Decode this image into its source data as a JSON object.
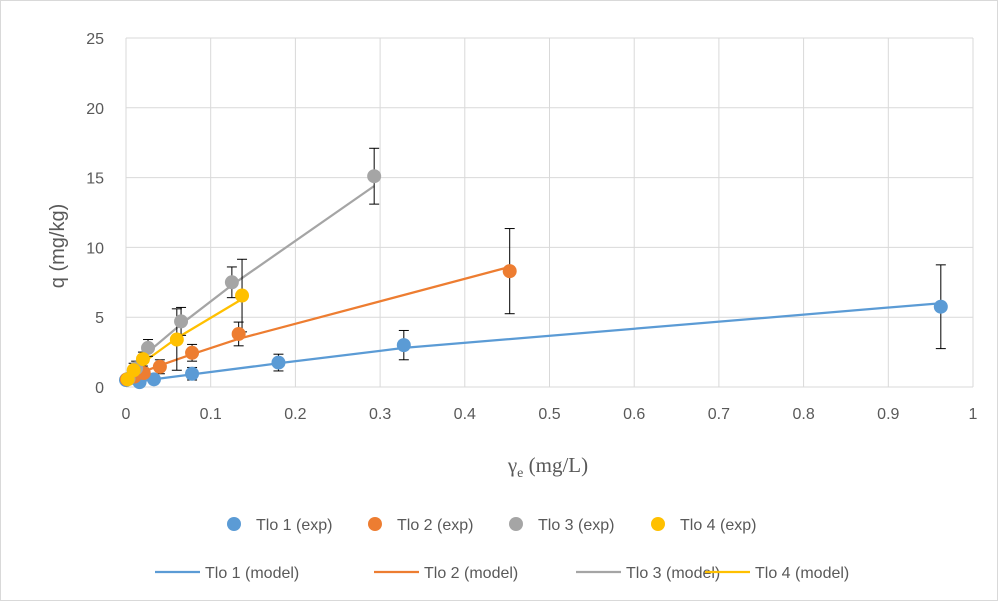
{
  "chart_data": {
    "type": "scatter",
    "title": "",
    "xlabel": {
      "main": "γ",
      "sub": "e",
      "unit": " (mg/L)"
    },
    "ylabel": "q (mg/kg)",
    "xlim": [
      0,
      1
    ],
    "ylim": [
      0,
      25
    ],
    "x_ticks": [
      "0",
      "0.1",
      "0.2",
      "0.3",
      "0.4",
      "0.5",
      "0.6",
      "0.7",
      "0.8",
      "0.9",
      "1"
    ],
    "y_ticks": [
      "0",
      "5",
      "10",
      "15",
      "20",
      "25"
    ],
    "grid": "vertical and horizontal major gridlines",
    "legend_position": "bottom",
    "series": [
      {
        "name": "Tlo 1 (exp)",
        "kind": "points",
        "color": "#5b9bd5",
        "x": [
          0.0,
          0.016,
          0.033,
          0.078,
          0.18,
          0.328,
          0.962
        ],
        "y": [
          0.5,
          0.35,
          0.55,
          0.95,
          1.75,
          3.0,
          5.75
        ],
        "error": [
          0.2,
          0.3,
          0.3,
          0.45,
          0.6,
          1.05,
          3.0
        ]
      },
      {
        "name": "Tlo 2 (exp)",
        "kind": "points",
        "color": "#ed7d31",
        "x": [
          0.001,
          0.01,
          0.021,
          0.04,
          0.078,
          0.133,
          0.453
        ],
        "y": [
          0.55,
          0.75,
          1.0,
          1.45,
          2.45,
          3.8,
          8.3
        ],
        "error": [
          0.15,
          0.3,
          0.35,
          0.5,
          0.6,
          0.85,
          3.05
        ]
      },
      {
        "name": "Tlo 3 (exp)",
        "kind": "points",
        "color": "#a5a5a5",
        "x": [
          0.003,
          0.012,
          0.026,
          0.065,
          0.125,
          0.293
        ],
        "y": [
          0.6,
          1.35,
          2.8,
          4.7,
          7.5,
          15.1
        ],
        "error": [
          0.2,
          0.5,
          0.6,
          1.0,
          1.1,
          2.0
        ]
      },
      {
        "name": "Tlo 4 (exp)",
        "kind": "points",
        "color": "#ffc000",
        "x": [
          0.002,
          0.009,
          0.02,
          0.06,
          0.137
        ],
        "y": [
          0.55,
          1.2,
          2.0,
          3.4,
          6.55
        ],
        "error": [
          0.2,
          0.5,
          0.5,
          2.2,
          2.6
        ]
      },
      {
        "name": "Tlo 1 (model)",
        "kind": "line",
        "color": "#5b9bd5",
        "x": [
          0.0,
          0.016,
          0.033,
          0.078,
          0.18,
          0.328,
          0.962
        ],
        "y": [
          0.1,
          0.4,
          0.55,
          0.9,
          1.7,
          2.8,
          6.0
        ]
      },
      {
        "name": "Tlo 2 (model)",
        "kind": "line",
        "color": "#ed7d31",
        "x": [
          0.001,
          0.01,
          0.021,
          0.04,
          0.078,
          0.133,
          0.453
        ],
        "y": [
          0.35,
          0.8,
          1.1,
          1.55,
          2.35,
          3.45,
          8.6
        ]
      },
      {
        "name": "Tlo 3 (model)",
        "kind": "line",
        "color": "#a5a5a5",
        "x": [
          0.003,
          0.012,
          0.026,
          0.065,
          0.125,
          0.293
        ],
        "y": [
          0.55,
          1.4,
          2.5,
          4.5,
          7.3,
          14.4
        ]
      },
      {
        "name": "Tlo 4 (model)",
        "kind": "line",
        "color": "#ffc000",
        "x": [
          0.002,
          0.009,
          0.02,
          0.06,
          0.137
        ],
        "y": [
          0.4,
          1.0,
          1.75,
          3.5,
          6.3
        ]
      }
    ]
  }
}
